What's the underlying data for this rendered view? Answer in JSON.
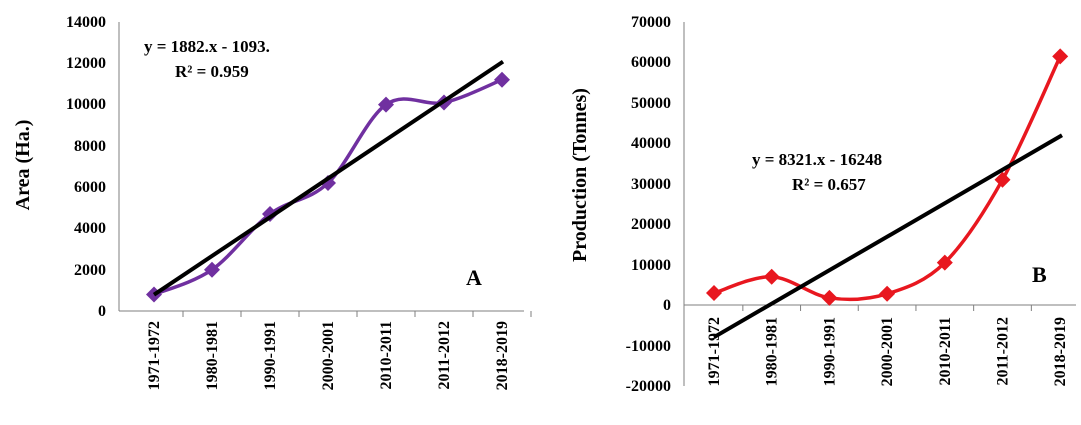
{
  "chart_data": [
    {
      "type": "line",
      "panel_label": "A",
      "ylabel": "Area (Ha.)",
      "categories": [
        "1971-1972",
        "1980-1981",
        "1990-1991",
        "2000-2001",
        "2010-2011",
        "2011-2012",
        "2018-2019"
      ],
      "yticks": [
        "14000",
        "12000",
        "10000",
        "8000",
        "6000",
        "4000",
        "2000",
        "0"
      ],
      "ylim": [
        0,
        14000
      ],
      "series": [
        {
          "values": [
            800,
            2000,
            4700,
            6200,
            10000,
            10100,
            11200
          ],
          "color": "#7030A0",
          "marker": "diamond"
        }
      ],
      "trendline": {
        "slope": 1882,
        "intercept": -1093,
        "color": "#000000"
      },
      "equation": "y = 1882.x - 1093.",
      "r_squared": "R² = 0.959"
    },
    {
      "type": "line",
      "panel_label": "B",
      "ylabel": "Production (Tonnes)",
      "categories": [
        "1971-1972",
        "1980-1981",
        "1990-1991",
        "2000-2001",
        "2010-2011",
        "2011-2012",
        "2018-2019"
      ],
      "yticks": [
        "70000",
        "60000",
        "50000",
        "40000",
        "30000",
        "20000",
        "10000",
        "0",
        "-10000",
        "-20000"
      ],
      "ylim": [
        -20000,
        70000
      ],
      "series": [
        {
          "values": [
            3000,
            7000,
            1800,
            2800,
            10500,
            31000,
            61500
          ],
          "color": "#E8171F",
          "marker": "diamond"
        }
      ],
      "trendline": {
        "slope": 8321,
        "intercept": -16248,
        "color": "#000000"
      },
      "equation": "y = 8321.x - 16248",
      "r_squared": "R² = 0.657"
    }
  ]
}
